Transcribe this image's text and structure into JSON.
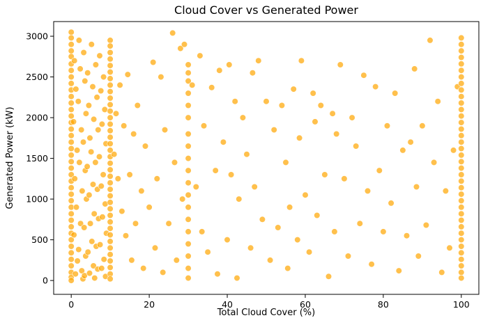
{
  "chart_data": {
    "type": "scatter",
    "title": "Cloud Cover vs Generated Power",
    "xlabel": "Total Cloud Cover (%)",
    "ylabel": "Generated Power (kW)",
    "xlim": [
      -4.5,
      104.5
    ],
    "ylim": [
      -170,
      3180
    ],
    "xticks": [
      0,
      20,
      40,
      60,
      80,
      100
    ],
    "yticks": [
      0,
      500,
      1000,
      1500,
      2000,
      2500,
      3000
    ],
    "xtick_labels": [
      "0",
      "20",
      "40",
      "60",
      "80",
      "100"
    ],
    "ytick_labels": [
      "0",
      "500",
      "1000",
      "1500",
      "2000",
      "2500",
      "3000"
    ],
    "grid": false,
    "marker_color": "#FFA500",
    "marker_edge_color": "#ffffff",
    "marker_alpha": 0.7,
    "series": [
      {
        "points": [
          [
            0,
            3050
          ],
          [
            0,
            2980
          ],
          [
            0,
            2900
          ],
          [
            0,
            2820
          ],
          [
            0,
            2750
          ],
          [
            0,
            2660
          ],
          [
            0,
            2580
          ],
          [
            0,
            2500
          ],
          [
            0,
            2420
          ],
          [
            0,
            2340
          ],
          [
            0,
            2260
          ],
          [
            0,
            2180
          ],
          [
            0,
            2100
          ],
          [
            0,
            2020
          ],
          [
            0,
            1940
          ],
          [
            0,
            1860
          ],
          [
            0,
            1780
          ],
          [
            0,
            1700
          ],
          [
            0,
            1620
          ],
          [
            0,
            1540
          ],
          [
            0,
            1460
          ],
          [
            0,
            1380
          ],
          [
            0,
            1300
          ],
          [
            0,
            1220
          ],
          [
            0,
            1140
          ],
          [
            0,
            1060
          ],
          [
            0,
            980
          ],
          [
            0,
            900
          ],
          [
            0,
            820
          ],
          [
            0,
            740
          ],
          [
            0,
            660
          ],
          [
            0,
            580
          ],
          [
            0,
            500
          ],
          [
            0,
            420
          ],
          [
            0,
            340
          ],
          [
            0,
            260
          ],
          [
            0,
            180
          ],
          [
            0,
            100
          ],
          [
            0,
            40
          ],
          [
            0,
            0
          ],
          [
            0.8,
            2700
          ],
          [
            1.2,
            2350
          ],
          [
            0.6,
            1950
          ],
          [
            1.5,
            1600
          ],
          [
            0.9,
            1250
          ],
          [
            1.3,
            900
          ],
          [
            0.7,
            560
          ],
          [
            1.6,
            240
          ],
          [
            1.1,
            80
          ],
          [
            2,
            2950
          ],
          [
            2.3,
            2600
          ],
          [
            1.8,
            2200
          ],
          [
            2.6,
            1850
          ],
          [
            2.1,
            1450
          ],
          [
            2.8,
            1100
          ],
          [
            2.4,
            700
          ],
          [
            1.9,
            380
          ],
          [
            2.7,
            120
          ],
          [
            3,
            20
          ],
          [
            3.2,
            2800
          ],
          [
            3.5,
            2450
          ],
          [
            3.8,
            2050
          ],
          [
            3.1,
            1700
          ],
          [
            3.6,
            1350
          ],
          [
            3.9,
            1000
          ],
          [
            3.3,
            650
          ],
          [
            3.7,
            300
          ],
          [
            3.4,
            60
          ],
          [
            4.2,
            2550
          ],
          [
            4.5,
            2150
          ],
          [
            4.8,
            1750
          ],
          [
            4.1,
            1400
          ],
          [
            4.6,
            1050
          ],
          [
            4.9,
            700
          ],
          [
            4.3,
            350
          ],
          [
            4.7,
            90
          ],
          [
            5.2,
            2900
          ],
          [
            5.5,
            2380
          ],
          [
            5.8,
            1980
          ],
          [
            5.1,
            1580
          ],
          [
            5.6,
            1180
          ],
          [
            5.9,
            820
          ],
          [
            5.3,
            480
          ],
          [
            5.7,
            180
          ],
          [
            6,
            30
          ],
          [
            6.3,
            2650
          ],
          [
            6.6,
            2250
          ],
          [
            6.9,
            1850
          ],
          [
            6.2,
            1450
          ],
          [
            6.7,
            1120
          ],
          [
            7,
            760
          ],
          [
            6.4,
            420
          ],
          [
            6.8,
            140
          ],
          [
            7.3,
            2760
          ],
          [
            7.6,
            2330
          ],
          [
            7.9,
            1920
          ],
          [
            7.2,
            1520
          ],
          [
            7.7,
            1160
          ],
          [
            8,
            780
          ],
          [
            7.4,
            440
          ],
          [
            7.8,
            150
          ],
          [
            8.3,
            2500
          ],
          [
            8.6,
            2100
          ],
          [
            8.9,
            1680
          ],
          [
            8.2,
            1300
          ],
          [
            8.7,
            940
          ],
          [
            9,
            580
          ],
          [
            8.4,
            260
          ],
          [
            8.8,
            50
          ],
          [
            10,
            2950
          ],
          [
            10,
            2880
          ],
          [
            10,
            2800
          ],
          [
            10,
            2720
          ],
          [
            10,
            2640
          ],
          [
            10,
            2560
          ],
          [
            10,
            2480
          ],
          [
            10,
            2400
          ],
          [
            10,
            2320
          ],
          [
            10,
            2240
          ],
          [
            10,
            2160
          ],
          [
            10,
            2080
          ],
          [
            10,
            2000
          ],
          [
            10,
            1920
          ],
          [
            10,
            1840
          ],
          [
            10,
            1760
          ],
          [
            10,
            1680
          ],
          [
            10,
            1600
          ],
          [
            10,
            1520
          ],
          [
            10,
            1440
          ],
          [
            10,
            1360
          ],
          [
            10,
            1280
          ],
          [
            10,
            1200
          ],
          [
            10,
            1120
          ],
          [
            10,
            1040
          ],
          [
            10,
            960
          ],
          [
            10,
            880
          ],
          [
            10,
            800
          ],
          [
            10,
            720
          ],
          [
            10,
            640
          ],
          [
            10,
            560
          ],
          [
            10,
            480
          ],
          [
            10,
            400
          ],
          [
            10,
            320
          ],
          [
            10,
            240
          ],
          [
            10,
            160
          ],
          [
            10,
            80
          ],
          [
            10,
            20
          ],
          [
            11,
            1550
          ],
          [
            11.5,
            2050
          ],
          [
            12,
            1250
          ],
          [
            12.5,
            2400
          ],
          [
            13,
            850
          ],
          [
            13.5,
            1900
          ],
          [
            14,
            550
          ],
          [
            14.5,
            2530
          ],
          [
            15,
            1300
          ],
          [
            15.5,
            250
          ],
          [
            16,
            1800
          ],
          [
            16.5,
            700
          ],
          [
            17,
            2150
          ],
          [
            18,
            1100
          ],
          [
            18.5,
            150
          ],
          [
            19,
            1650
          ],
          [
            20,
            900
          ],
          [
            21,
            2680
          ],
          [
            21.5,
            400
          ],
          [
            22,
            1250
          ],
          [
            23,
            2500
          ],
          [
            23.5,
            100
          ],
          [
            24,
            1850
          ],
          [
            25,
            700
          ],
          [
            26,
            3040
          ],
          [
            26.5,
            1450
          ],
          [
            27,
            250
          ],
          [
            28,
            2850
          ],
          [
            28.5,
            1000
          ],
          [
            29,
            2900
          ],
          [
            30,
            2650
          ],
          [
            30,
            2550
          ],
          [
            30,
            2450
          ],
          [
            30,
            2300
          ],
          [
            30,
            2150
          ],
          [
            30,
            2000
          ],
          [
            30,
            1800
          ],
          [
            30,
            1650
          ],
          [
            30,
            1500
          ],
          [
            30,
            1350
          ],
          [
            30,
            1200
          ],
          [
            30,
            1050
          ],
          [
            30,
            900
          ],
          [
            30,
            750
          ],
          [
            30,
            600
          ],
          [
            30,
            450
          ],
          [
            30,
            300
          ],
          [
            30,
            150
          ],
          [
            30,
            30
          ],
          [
            31,
            2400
          ],
          [
            32,
            1150
          ],
          [
            33,
            2760
          ],
          [
            33.5,
            600
          ],
          [
            34,
            1900
          ],
          [
            35,
            350
          ],
          [
            36,
            2370
          ],
          [
            37,
            1350
          ],
          [
            37.5,
            80
          ],
          [
            38,
            2580
          ],
          [
            39,
            1700
          ],
          [
            40,
            500
          ],
          [
            40.5,
            2650
          ],
          [
            41,
            1300
          ],
          [
            42,
            2200
          ],
          [
            42.5,
            30
          ],
          [
            43,
            1000
          ],
          [
            44,
            2000
          ],
          [
            45,
            1550
          ],
          [
            46,
            400
          ],
          [
            46.5,
            2550
          ],
          [
            47,
            1150
          ],
          [
            48,
            2700
          ],
          [
            49,
            750
          ],
          [
            50,
            2200
          ],
          [
            51,
            250
          ],
          [
            52,
            1850
          ],
          [
            53,
            650
          ],
          [
            54,
            2150
          ],
          [
            55,
            1450
          ],
          [
            55.5,
            150
          ],
          [
            56,
            900
          ],
          [
            57,
            2350
          ],
          [
            58,
            500
          ],
          [
            58.5,
            1750
          ],
          [
            59,
            2700
          ],
          [
            60,
            1050
          ],
          [
            61,
            350
          ],
          [
            62,
            2300
          ],
          [
            62.5,
            1950
          ],
          [
            63,
            800
          ],
          [
            64,
            2150
          ],
          [
            65,
            1300
          ],
          [
            66,
            50
          ],
          [
            67,
            2050
          ],
          [
            67.5,
            600
          ],
          [
            68,
            1800
          ],
          [
            69,
            2650
          ],
          [
            70,
            1250
          ],
          [
            71,
            300
          ],
          [
            72,
            2000
          ],
          [
            73,
            1650
          ],
          [
            74,
            700
          ],
          [
            75,
            2520
          ],
          [
            76,
            1100
          ],
          [
            77,
            200
          ],
          [
            78,
            2380
          ],
          [
            79,
            1350
          ],
          [
            80,
            600
          ],
          [
            81,
            1900
          ],
          [
            82,
            950
          ],
          [
            83,
            2300
          ],
          [
            84,
            120
          ],
          [
            85,
            1600
          ],
          [
            86,
            550
          ],
          [
            87,
            1700
          ],
          [
            88,
            2600
          ],
          [
            88.5,
            1150
          ],
          [
            89,
            300
          ],
          [
            90,
            1900
          ],
          [
            91,
            680
          ],
          [
            92,
            2950
          ],
          [
            93,
            1450
          ],
          [
            94,
            2200
          ],
          [
            95,
            100
          ],
          [
            96,
            1100
          ],
          [
            97,
            400
          ],
          [
            98,
            1600
          ],
          [
            99,
            2380
          ],
          [
            100,
            2980
          ],
          [
            100,
            2900
          ],
          [
            100,
            2820
          ],
          [
            100,
            2740
          ],
          [
            100,
            2660
          ],
          [
            100,
            2580
          ],
          [
            100,
            2500
          ],
          [
            100,
            2420
          ],
          [
            100,
            2340
          ],
          [
            100,
            2260
          ],
          [
            100,
            2180
          ],
          [
            100,
            2100
          ],
          [
            100,
            2020
          ],
          [
            100,
            1940
          ],
          [
            100,
            1860
          ],
          [
            100,
            1780
          ],
          [
            100,
            1700
          ],
          [
            100,
            1620
          ],
          [
            100,
            1540
          ],
          [
            100,
            1460
          ],
          [
            100,
            1380
          ],
          [
            100,
            1300
          ],
          [
            100,
            1220
          ],
          [
            100,
            1140
          ],
          [
            100,
            1060
          ],
          [
            100,
            980
          ],
          [
            100,
            900
          ],
          [
            100,
            820
          ],
          [
            100,
            740
          ],
          [
            100,
            660
          ],
          [
            100,
            580
          ],
          [
            100,
            500
          ],
          [
            100,
            420
          ],
          [
            100,
            340
          ],
          [
            100,
            260
          ],
          [
            100,
            180
          ],
          [
            100,
            100
          ],
          [
            100,
            30
          ]
        ]
      }
    ]
  }
}
